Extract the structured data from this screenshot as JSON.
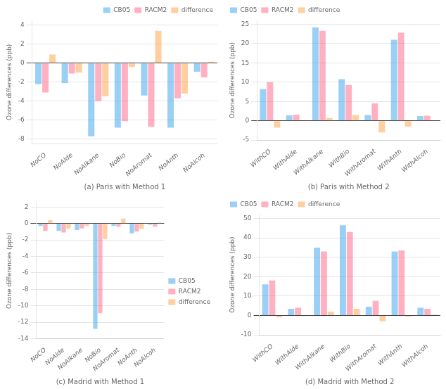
{
  "chart_data": [
    {
      "type": "bar",
      "xlabel": "(a) Paris with Method 1",
      "ylabel": "Ozone differences (ppb)",
      "categories": [
        "NoCO",
        "NoAlde",
        "NoAlkane",
        "NoBio",
        "NoAromat",
        "NoAnth",
        "NoAlcoh"
      ],
      "series": [
        {
          "name": "CB05",
          "values": [
            -2.2,
            -2.1,
            -7.7,
            -6.8,
            -3.4,
            -6.8,
            -0.9
          ]
        },
        {
          "name": "RACM2",
          "values": [
            -3.1,
            -1.1,
            -4.0,
            -6.1,
            -6.7,
            -3.7,
            -1.5
          ]
        },
        {
          "name": "difference",
          "values": [
            0.9,
            -1.0,
            -3.5,
            -0.4,
            3.4,
            -3.2,
            0.15
          ]
        }
      ],
      "ylim": [
        -8.5,
        4.5
      ],
      "yticks": [
        -8,
        -6,
        -4,
        -2,
        0,
        2,
        4
      ],
      "grid": true,
      "legend": "upper right"
    },
    {
      "type": "bar",
      "xlabel": "(b) Paris with Method 2",
      "ylabel": "Ozone differences (ppb)",
      "categories": [
        "WithCO",
        "WithAlde",
        "WithAlkane",
        "WithBio",
        "WithAromat",
        "WithAnth",
        "WithAlcoh"
      ],
      "series": [
        {
          "name": "CB05",
          "values": [
            8.2,
            1.4,
            24.2,
            10.8,
            1.5,
            21.0,
            1.2
          ]
        },
        {
          "name": "RACM2",
          "values": [
            10.0,
            1.6,
            23.3,
            9.3,
            4.5,
            22.8,
            1.3
          ]
        },
        {
          "name": "difference",
          "values": [
            -1.8,
            -0.1,
            0.7,
            1.5,
            -3.0,
            -1.5,
            -0.1
          ]
        }
      ],
      "ylim": [
        -5,
        26
      ],
      "yticks": [
        -5,
        0,
        5,
        10,
        15,
        20,
        25
      ],
      "grid": true,
      "legend": "upper left"
    },
    {
      "type": "bar",
      "xlabel": "(c) Madrid with Method 1",
      "ylabel": "Ozone differences (ppb)",
      "categories": [
        "NoCO",
        "NoAlde",
        "NoAlkane",
        "NoBio",
        "NoAromat",
        "NoAnth",
        "NoAlcoh"
      ],
      "series": [
        {
          "name": "CB05",
          "values": [
            -0.3,
            -0.9,
            -0.8,
            -12.8,
            -0.3,
            -1.2,
            -0.15
          ]
        },
        {
          "name": "RACM2",
          "values": [
            -0.9,
            -1.1,
            -0.6,
            -10.9,
            -0.4,
            -1.0,
            -0.4
          ]
        },
        {
          "name": "difference",
          "values": [
            0.4,
            -0.6,
            -0.3,
            -1.9,
            0.6,
            -0.65,
            0.1
          ]
        }
      ],
      "ylim": [
        -14,
        2.5
      ],
      "yticks": [
        -14,
        -12,
        -10,
        -8,
        -6,
        -4,
        -2,
        0,
        2
      ],
      "grid": true,
      "legend": "center right"
    },
    {
      "type": "bar",
      "xlabel": "(d) Madrid with Method 2",
      "ylabel": "Ozone differences (ppb)",
      "categories": [
        "WithCO",
        "WithAlde",
        "WithAlkane",
        "WithBio",
        "WithAromat",
        "WithAnth",
        "WithAlcoh"
      ],
      "series": [
        {
          "name": "CB05",
          "values": [
            16.0,
            3.5,
            35.0,
            46.5,
            4.5,
            33.0,
            4.0
          ]
        },
        {
          "name": "RACM2",
          "values": [
            18.0,
            4.0,
            33.0,
            43.0,
            7.5,
            33.5,
            3.5
          ]
        },
        {
          "name": "difference",
          "values": [
            -1.0,
            -0.3,
            2.0,
            3.5,
            -3.0,
            -0.5,
            0.5
          ]
        }
      ],
      "ylim": [
        -10,
        52
      ],
      "yticks": [
        -10,
        0,
        10,
        20,
        30,
        40,
        50
      ],
      "grid": true,
      "legend": "upper left"
    }
  ]
}
